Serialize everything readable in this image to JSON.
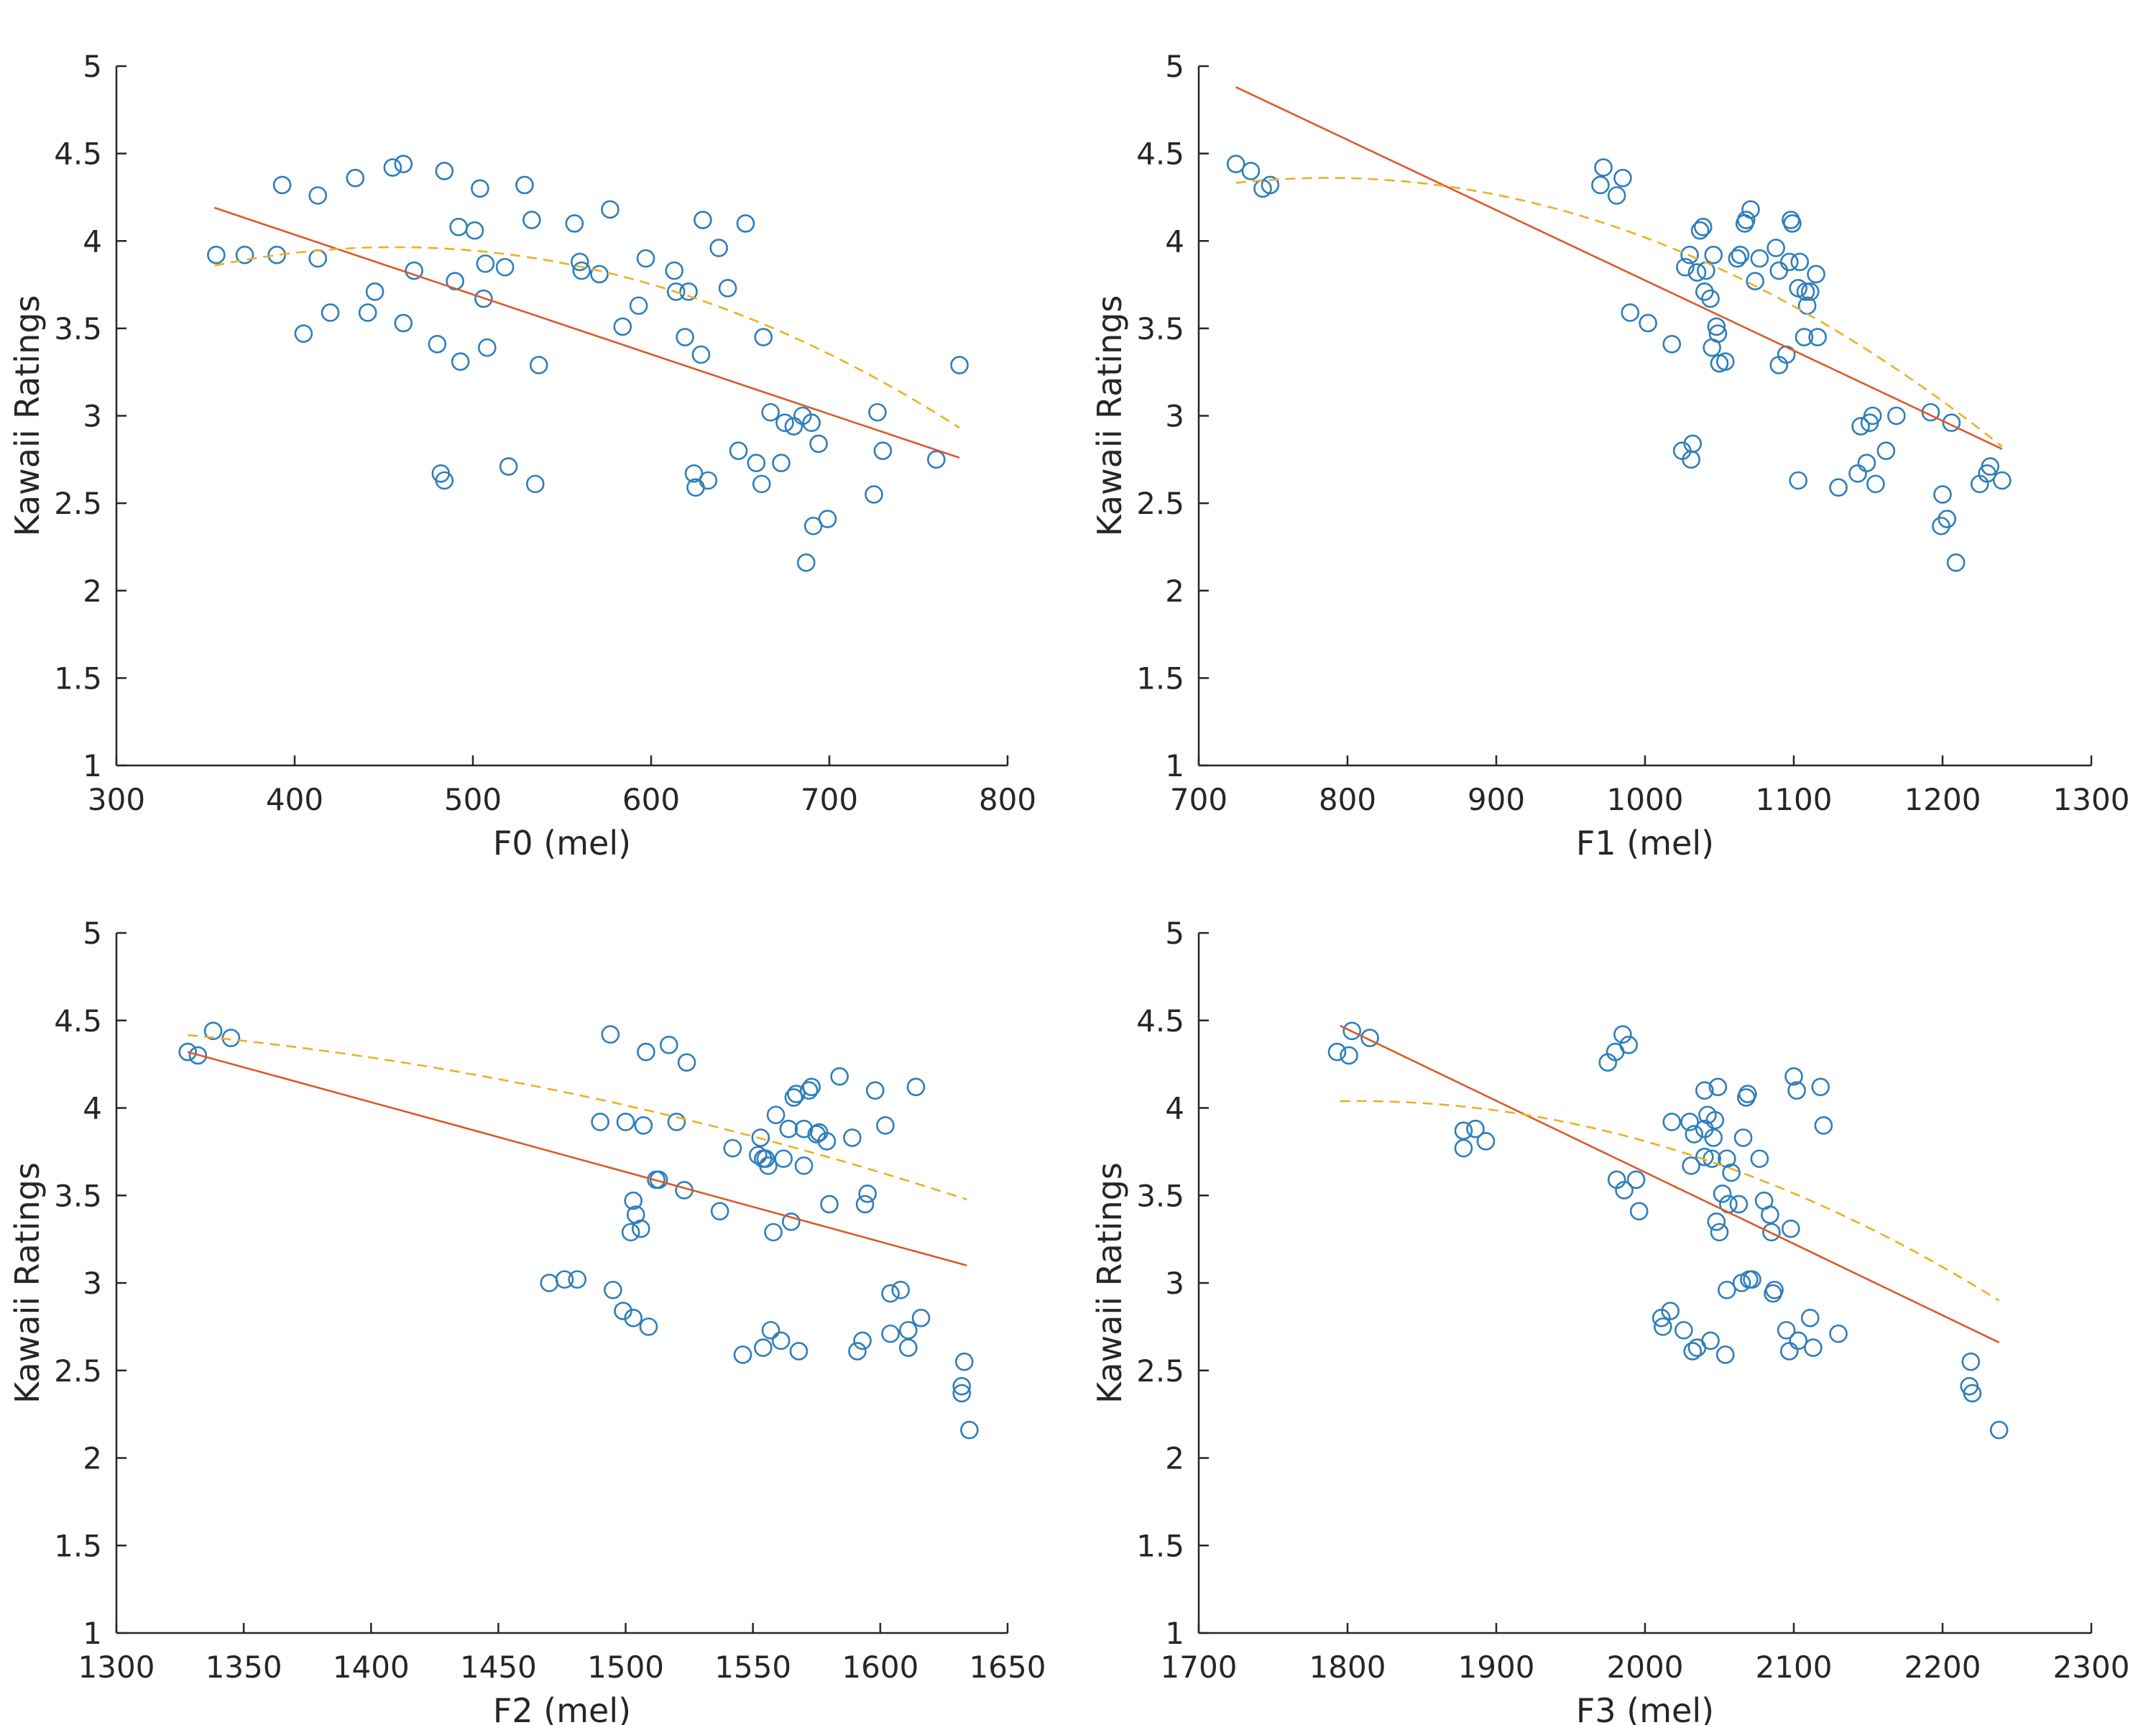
{
  "colors": {
    "points": "#2E7EBB",
    "linear_fit": "#D95A2B",
    "quadratic_fit": "#EDB120",
    "axis": "#262626"
  },
  "chart_data": [
    {
      "type": "scatter",
      "title": "",
      "xlabel": "F0 (mel)",
      "ylabel": "Kawaii Ratings",
      "xlim": [
        300,
        800
      ],
      "ylim": [
        1,
        5
      ],
      "xticks": [
        "300",
        "400",
        "500",
        "600",
        "700",
        "800"
      ],
      "yticks": [
        "1",
        "1.5",
        "2",
        "2.5",
        "3",
        "3.5",
        "4",
        "4.5",
        "5"
      ],
      "linear_fit": [
        [
          355,
          4.19
        ],
        [
          773,
          2.76
        ]
      ],
      "quadratic_fit": {
        "a": -1.03e-05,
        "b": 0.0094,
        "c": 1.82,
        "x_range": [
          355,
          773
        ]
      },
      "points": [
        [
          356,
          3.92
        ],
        [
          372,
          3.92
        ],
        [
          390,
          3.92
        ],
        [
          393,
          4.32
        ],
        [
          405,
          3.47
        ],
        [
          413,
          4.26
        ],
        [
          413,
          3.9
        ],
        [
          420,
          3.59
        ],
        [
          434,
          4.36
        ],
        [
          441,
          3.59
        ],
        [
          445,
          3.71
        ],
        [
          455,
          4.42
        ],
        [
          461,
          4.44
        ],
        [
          461,
          3.53
        ],
        [
          467,
          3.83
        ],
        [
          480,
          3.41
        ],
        [
          482,
          2.67
        ],
        [
          484,
          2.63
        ],
        [
          484,
          4.4
        ],
        [
          490,
          3.77
        ],
        [
          492,
          4.08
        ],
        [
          493,
          3.31
        ],
        [
          501,
          4.06
        ],
        [
          504,
          4.3
        ],
        [
          506,
          3.67
        ],
        [
          507,
          3.87
        ],
        [
          508,
          3.39
        ],
        [
          518,
          3.85
        ],
        [
          520,
          2.71
        ],
        [
          529,
          4.32
        ],
        [
          533,
          4.12
        ],
        [
          535,
          2.61
        ],
        [
          537,
          3.29
        ],
        [
          557,
          4.1
        ],
        [
          560,
          3.88
        ],
        [
          561,
          3.83
        ],
        [
          571,
          3.81
        ],
        [
          577,
          4.18
        ],
        [
          584,
          3.51
        ],
        [
          593,
          3.63
        ],
        [
          597,
          3.9
        ],
        [
          613,
          3.83
        ],
        [
          614,
          3.71
        ],
        [
          619,
          3.45
        ],
        [
          621,
          3.71
        ],
        [
          624,
          2.67
        ],
        [
          625,
          2.59
        ],
        [
          628,
          3.35
        ],
        [
          629,
          4.12
        ],
        [
          632,
          2.63
        ],
        [
          638,
          3.96
        ],
        [
          643,
          3.73
        ],
        [
          649,
          2.8
        ],
        [
          653,
          4.1
        ],
        [
          659,
          2.73
        ],
        [
          662,
          2.61
        ],
        [
          663,
          3.45
        ],
        [
          667,
          3.02
        ],
        [
          673,
          2.73
        ],
        [
          675,
          2.96
        ],
        [
          680,
          2.94
        ],
        [
          685,
          3.0
        ],
        [
          687,
          2.16
        ],
        [
          690,
          2.96
        ],
        [
          691,
          2.37
        ],
        [
          694,
          2.84
        ],
        [
          699,
          2.41
        ],
        [
          725,
          2.55
        ],
        [
          727,
          3.02
        ],
        [
          730,
          2.8
        ],
        [
          760,
          2.75
        ],
        [
          773,
          3.29
        ]
      ]
    },
    {
      "type": "scatter",
      "title": "",
      "xlabel": "F1 (mel)",
      "ylabel": "Kawaii Ratings",
      "xlim": [
        700,
        1300
      ],
      "ylim": [
        1,
        5
      ],
      "xticks": [
        "700",
        "800",
        "900",
        "1000",
        "1100",
        "1200",
        "1300"
      ],
      "yticks": [
        "1",
        "1.5",
        "2",
        "2.5",
        "3",
        "3.5",
        "4",
        "4.5",
        "5"
      ],
      "linear_fit": [
        [
          725,
          4.88
        ],
        [
          1240,
          2.81
        ]
      ],
      "quadratic_fit": {
        "a": -7.47e-06,
        "b": 0.01175,
        "c": -0.26,
        "x_range": [
          725,
          1240
        ]
      },
      "points": [
        [
          725,
          4.44
        ],
        [
          735,
          4.4
        ],
        [
          743,
          4.3
        ],
        [
          748,
          4.32
        ],
        [
          970,
          4.32
        ],
        [
          972,
          4.42
        ],
        [
          981,
          4.26
        ],
        [
          985,
          4.36
        ],
        [
          990,
          3.59
        ],
        [
          1002,
          3.53
        ],
        [
          1018,
          3.41
        ],
        [
          1025,
          2.8
        ],
        [
          1027,
          3.85
        ],
        [
          1030,
          3.92
        ],
        [
          1031,
          2.75
        ],
        [
          1032,
          2.84
        ],
        [
          1035,
          3.82
        ],
        [
          1037,
          4.06
        ],
        [
          1039,
          4.08
        ],
        [
          1040,
          3.71
        ],
        [
          1041,
          3.83
        ],
        [
          1044,
          3.67
        ],
        [
          1045,
          3.39
        ],
        [
          1046,
          3.92
        ],
        [
          1048,
          3.51
        ],
        [
          1049,
          3.47
        ],
        [
          1050,
          3.3
        ],
        [
          1054,
          3.31
        ],
        [
          1062,
          3.9
        ],
        [
          1064,
          3.92
        ],
        [
          1067,
          4.1
        ],
        [
          1068,
          4.12
        ],
        [
          1071,
          4.18
        ],
        [
          1074,
          3.77
        ],
        [
          1077,
          3.9
        ],
        [
          1088,
          3.96
        ],
        [
          1090,
          3.29
        ],
        [
          1090,
          3.83
        ],
        [
          1095,
          3.35
        ],
        [
          1097,
          3.88
        ],
        [
          1098,
          4.12
        ],
        [
          1099,
          4.1
        ],
        [
          1103,
          2.63
        ],
        [
          1103,
          3.73
        ],
        [
          1104,
          3.88
        ],
        [
          1107,
          3.45
        ],
        [
          1108,
          3.71
        ],
        [
          1109,
          3.63
        ],
        [
          1111,
          3.71
        ],
        [
          1115,
          3.81
        ],
        [
          1116,
          3.45
        ],
        [
          1130,
          2.59
        ],
        [
          1143,
          2.67
        ],
        [
          1145,
          2.94
        ],
        [
          1149,
          2.73
        ],
        [
          1151,
          2.96
        ],
        [
          1153,
          3.0
        ],
        [
          1155,
          2.61
        ],
        [
          1162,
          2.8
        ],
        [
          1169,
          3.0
        ],
        [
          1192,
          3.02
        ],
        [
          1199,
          2.37
        ],
        [
          1200,
          2.55
        ],
        [
          1203,
          2.41
        ],
        [
          1206,
          2.96
        ],
        [
          1209,
          2.16
        ],
        [
          1225,
          2.61
        ],
        [
          1230,
          2.67
        ],
        [
          1232,
          2.71
        ],
        [
          1240,
          2.63
        ]
      ]
    },
    {
      "type": "scatter",
      "title": "",
      "xlabel": "F2 (mel)",
      "ylabel": "Kawaii Ratings",
      "xlim": [
        1300,
        1650
      ],
      "ylim": [
        1,
        5
      ],
      "xticks": [
        "1300",
        "1350",
        "1400",
        "1450",
        "1500",
        "1550",
        "1600",
        "1650"
      ],
      "yticks": [
        "1",
        "1.5",
        "2",
        "2.5",
        "3",
        "3.5",
        "4",
        "4.5",
        "5"
      ],
      "linear_fit": [
        [
          1328,
          4.32
        ],
        [
          1634,
          3.1
        ]
      ],
      "quadratic_fit": {
        "a": -5.5e-06,
        "b": 0.01322,
        "c": -3.44,
        "x_range": [
          1328,
          1634
        ]
      },
      "points": [
        [
          1328,
          4.32
        ],
        [
          1332,
          4.3
        ],
        [
          1338,
          4.44
        ],
        [
          1345,
          4.4
        ],
        [
          1470,
          3.0
        ],
        [
          1476,
          3.02
        ],
        [
          1481,
          3.02
        ],
        [
          1490,
          3.92
        ],
        [
          1494,
          4.42
        ],
        [
          1495,
          2.96
        ],
        [
          1499,
          2.84
        ],
        [
          1500,
          3.92
        ],
        [
          1502,
          3.29
        ],
        [
          1503,
          2.8
        ],
        [
          1503,
          3.47
        ],
        [
          1504,
          3.39
        ],
        [
          1506,
          3.31
        ],
        [
          1507,
          3.9
        ],
        [
          1508,
          4.32
        ],
        [
          1509,
          2.75
        ],
        [
          1512,
          3.59
        ],
        [
          1513,
          3.59
        ],
        [
          1517,
          4.36
        ],
        [
          1520,
          3.92
        ],
        [
          1523,
          3.53
        ],
        [
          1524,
          4.26
        ],
        [
          1537,
          3.41
        ],
        [
          1542,
          3.77
        ],
        [
          1546,
          2.59
        ],
        [
          1552,
          3.73
        ],
        [
          1553,
          3.83
        ],
        [
          1554,
          3.71
        ],
        [
          1554,
          2.63
        ],
        [
          1555,
          3.71
        ],
        [
          1556,
          3.67
        ],
        [
          1557,
          2.73
        ],
        [
          1558,
          3.29
        ],
        [
          1559,
          3.96
        ],
        [
          1561,
          2.67
        ],
        [
          1562,
          3.71
        ],
        [
          1564,
          3.88
        ],
        [
          1565,
          3.35
        ],
        [
          1566,
          4.06
        ],
        [
          1567,
          4.08
        ],
        [
          1568,
          2.61
        ],
        [
          1570,
          3.67
        ],
        [
          1570,
          3.88
        ],
        [
          1572,
          4.1
        ],
        [
          1573,
          4.12
        ],
        [
          1575,
          3.85
        ],
        [
          1576,
          3.86
        ],
        [
          1579,
          3.81
        ],
        [
          1580,
          3.45
        ],
        [
          1584,
          4.18
        ],
        [
          1589,
          3.83
        ],
        [
          1591,
          2.61
        ],
        [
          1593,
          2.67
        ],
        [
          1594,
          3.45
        ],
        [
          1595,
          3.51
        ],
        [
          1598,
          4.1
        ],
        [
          1602,
          3.9
        ],
        [
          1604,
          2.94
        ],
        [
          1604,
          2.71
        ],
        [
          1608,
          2.96
        ],
        [
          1611,
          2.73
        ],
        [
          1611,
          2.63
        ],
        [
          1614,
          4.12
        ],
        [
          1616,
          2.8
        ],
        [
          1632,
          2.37
        ],
        [
          1632,
          2.41
        ],
        [
          1633,
          2.55
        ],
        [
          1635,
          2.16
        ]
      ]
    },
    {
      "type": "scatter",
      "title": "",
      "xlabel": "F3 (mel)",
      "ylabel": "Kawaii Ratings",
      "xlim": [
        1700,
        2300
      ],
      "ylim": [
        1,
        5
      ],
      "xticks": [
        "1700",
        "1800",
        "1900",
        "2000",
        "2100",
        "2200",
        "2300"
      ],
      "yticks": [
        "1",
        "1.5",
        "2",
        "2.5",
        "3",
        "3.5",
        "4",
        "4.5",
        "5"
      ],
      "linear_fit": [
        [
          1795,
          4.47
        ],
        [
          2238,
          2.66
        ]
      ],
      "quadratic_fit": {
        "a": -6.12e-06,
        "b": 0.02211,
        "c": -15.93,
        "x_range": [
          1795,
          2238
        ]
      },
      "points": [
        [
          1793,
          4.32
        ],
        [
          1801,
          4.3
        ],
        [
          1803,
          4.44
        ],
        [
          1815,
          4.4
        ],
        [
          1878,
          3.87
        ],
        [
          1878,
          3.77
        ],
        [
          1886,
          3.88
        ],
        [
          1893,
          3.81
        ],
        [
          1975,
          4.26
        ],
        [
          1980,
          4.32
        ],
        [
          1981,
          3.59
        ],
        [
          1985,
          4.42
        ],
        [
          1986,
          3.53
        ],
        [
          1989,
          4.36
        ],
        [
          1994,
          3.59
        ],
        [
          1996,
          3.41
        ],
        [
          2011,
          2.8
        ],
        [
          2012,
          2.75
        ],
        [
          2017,
          2.84
        ],
        [
          2018,
          3.92
        ],
        [
          2026,
          2.73
        ],
        [
          2030,
          3.92
        ],
        [
          2031,
          3.67
        ],
        [
          2032,
          2.61
        ],
        [
          2033,
          3.85
        ],
        [
          2035,
          2.63
        ],
        [
          2040,
          3.88
        ],
        [
          2040,
          4.1
        ],
        [
          2040,
          3.72
        ],
        [
          2042,
          3.96
        ],
        [
          2044,
          2.67
        ],
        [
          2045,
          3.71
        ],
        [
          2046,
          3.83
        ],
        [
          2047,
          3.93
        ],
        [
          2048,
          3.35
        ],
        [
          2049,
          4.12
        ],
        [
          2050,
          3.29
        ],
        [
          2052,
          3.51
        ],
        [
          2054,
          2.59
        ],
        [
          2055,
          2.96
        ],
        [
          2055,
          3.71
        ],
        [
          2056,
          3.45
        ],
        [
          2058,
          3.63
        ],
        [
          2063,
          3.45
        ],
        [
          2065,
          3.0
        ],
        [
          2066,
          3.83
        ],
        [
          2068,
          4.06
        ],
        [
          2069,
          4.08
        ],
        [
          2070,
          3.02
        ],
        [
          2072,
          3.02
        ],
        [
          2077,
          3.71
        ],
        [
          2080,
          3.47
        ],
        [
          2084,
          3.39
        ],
        [
          2085,
          3.29
        ],
        [
          2086,
          2.94
        ],
        [
          2087,
          2.96
        ],
        [
          2095,
          2.73
        ],
        [
          2097,
          2.61
        ],
        [
          2098,
          3.31
        ],
        [
          2100,
          4.18
        ],
        [
          2102,
          4.1
        ],
        [
          2103,
          2.67
        ],
        [
          2111,
          2.8
        ],
        [
          2113,
          2.63
        ],
        [
          2118,
          4.12
        ],
        [
          2120,
          3.9
        ],
        [
          2130,
          2.71
        ],
        [
          2218,
          2.41
        ],
        [
          2219,
          2.55
        ],
        [
          2220,
          2.37
        ],
        [
          2238,
          2.16
        ]
      ]
    }
  ]
}
